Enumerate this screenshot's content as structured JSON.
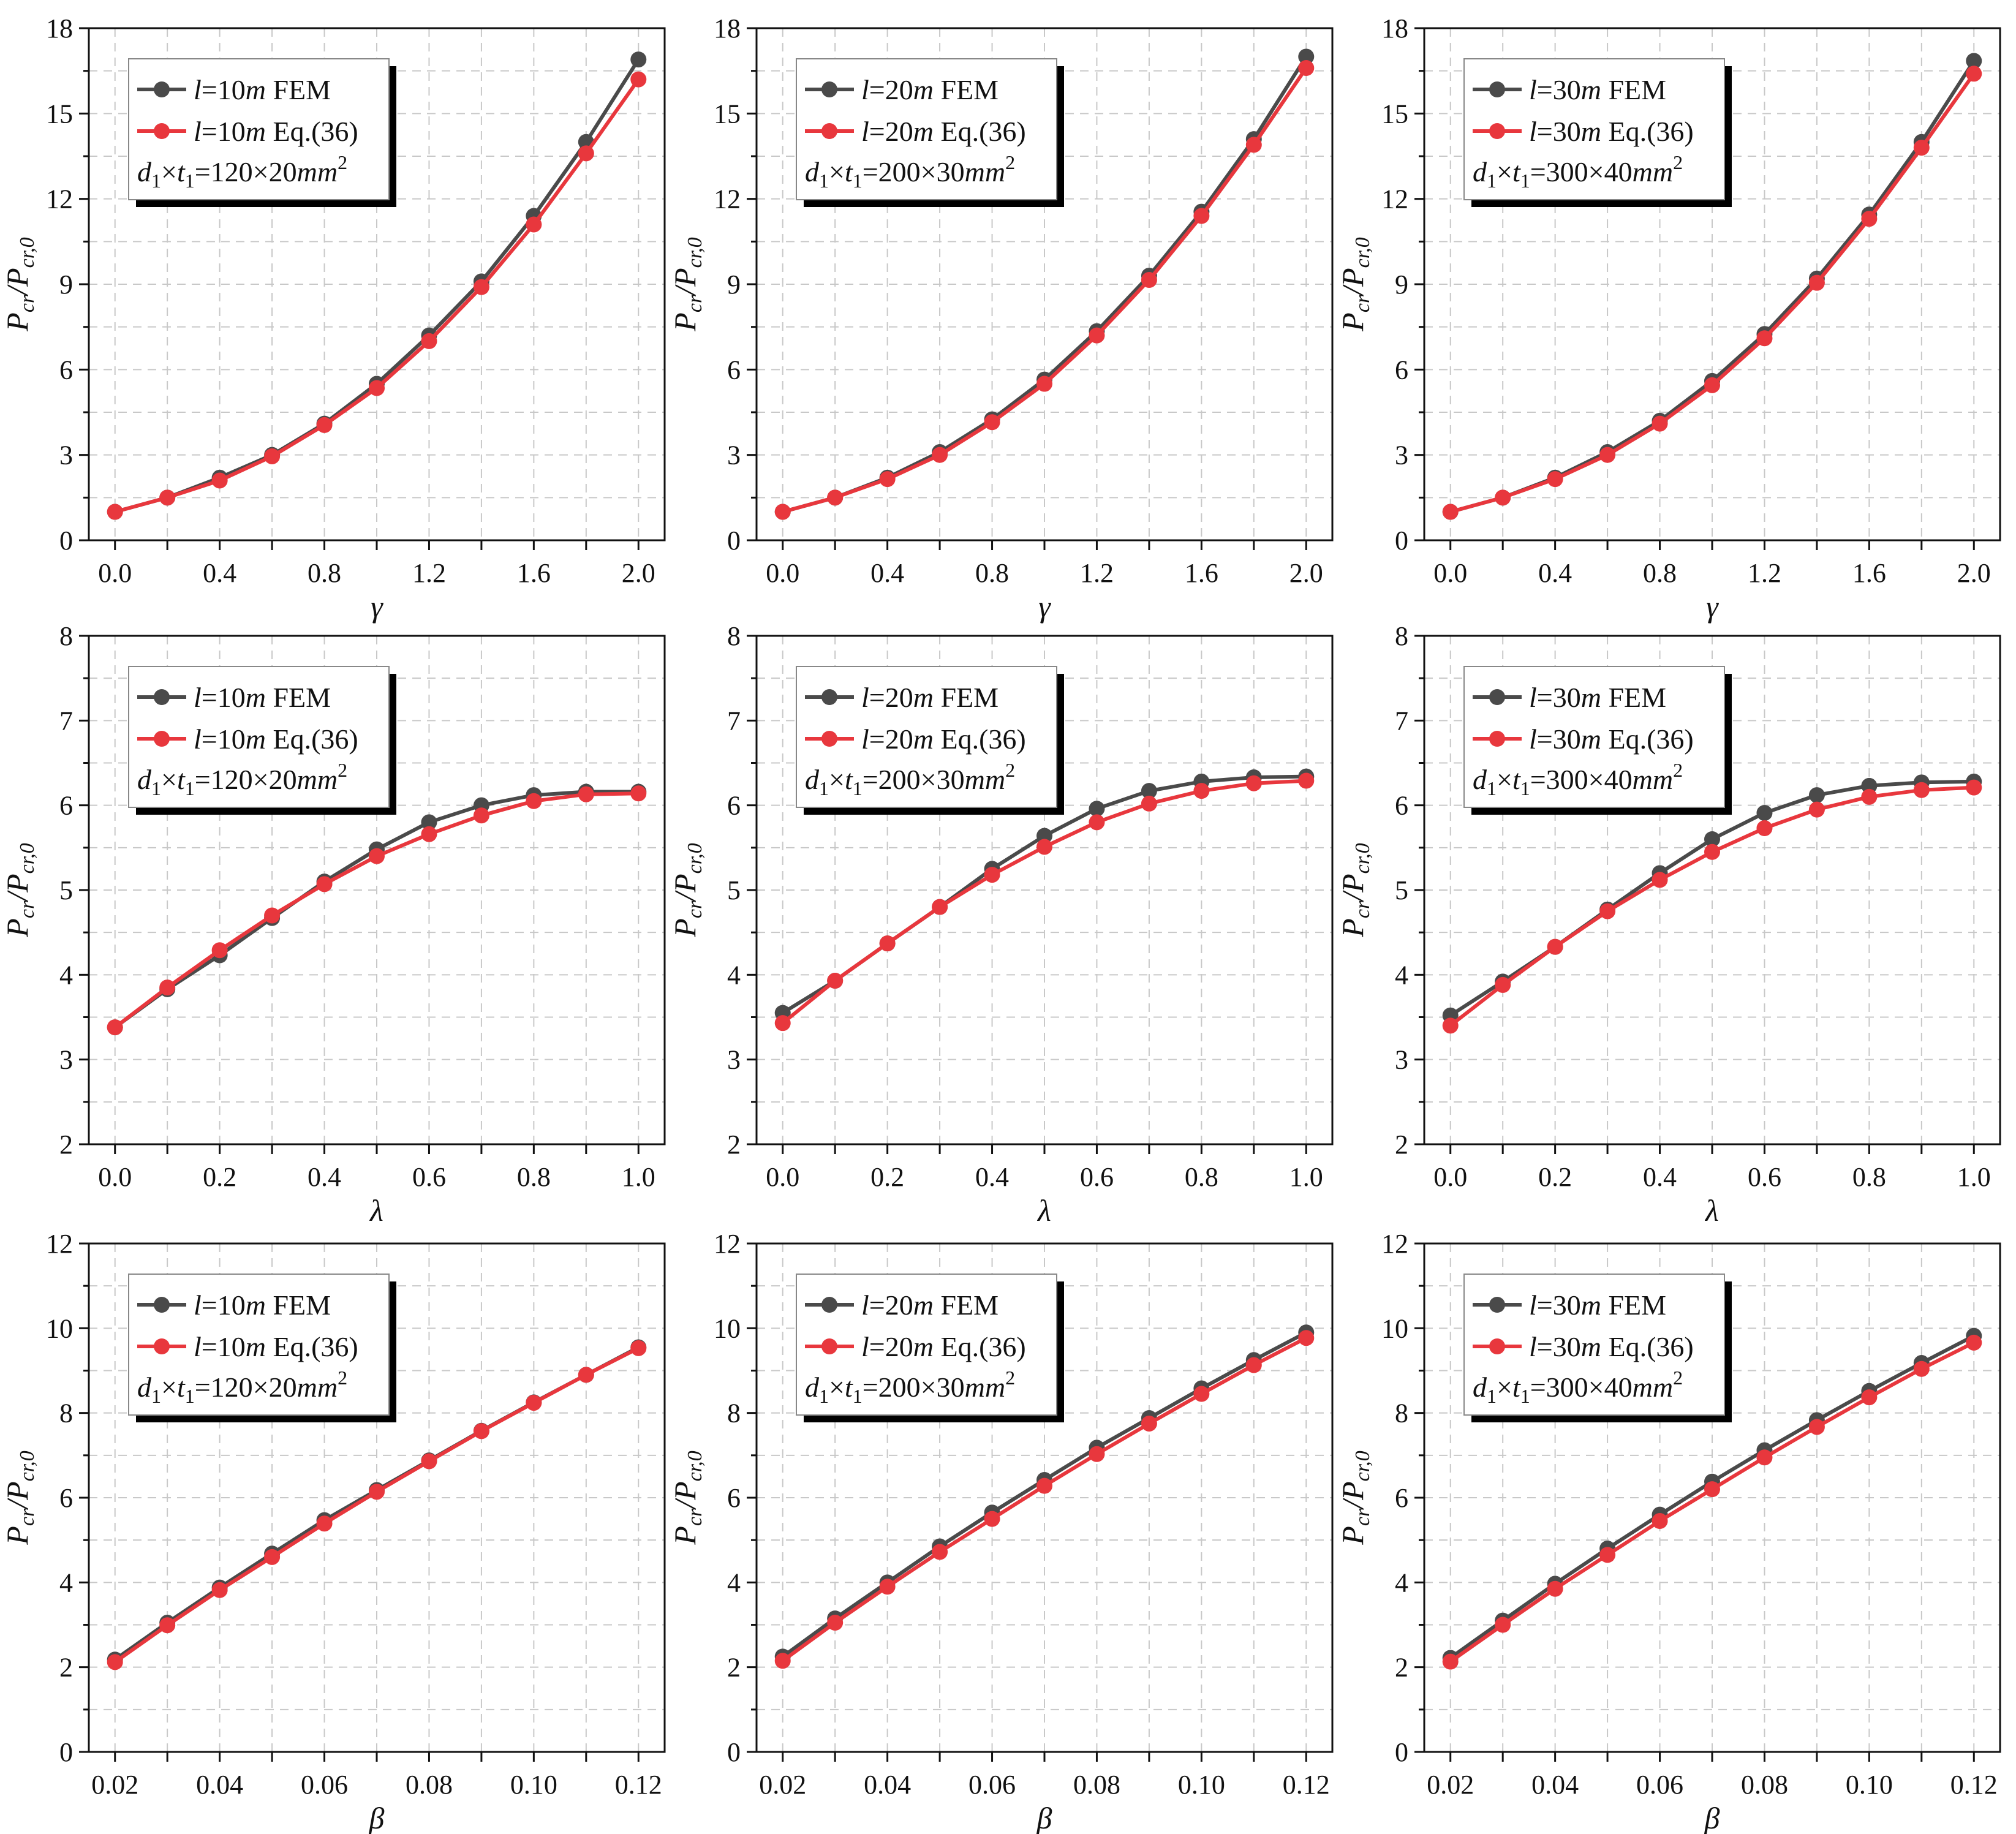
{
  "colors": {
    "fem": "#4a4a4a",
    "eq": "#e8373d",
    "grid": "#c8c8c8"
  },
  "chart_data": [
    {
      "type": "line",
      "row": 0,
      "col": 0,
      "xlabel": "γ",
      "ylabel": {
        "base": "P",
        "sub1": "cr",
        "sep": "/P",
        "sub2": "cr,0"
      },
      "xlim": [
        -0.1,
        2.1
      ],
      "ylim": [
        0,
        18
      ],
      "xticks": [
        0,
        0.2,
        0.4,
        0.6,
        0.8,
        1.0,
        1.2,
        1.4,
        1.6,
        1.8,
        2.0
      ],
      "xticklabels": [
        "0.0",
        "",
        "0.4",
        "",
        "0.8",
        "",
        "1.2",
        "",
        "1.6",
        "",
        "2.0"
      ],
      "yticks": [
        0,
        3,
        6,
        9,
        12,
        15,
        18
      ],
      "yticklabels": [
        "0",
        "3",
        "6",
        "9",
        "12",
        "15",
        "18"
      ],
      "x": [
        0,
        0.2,
        0.4,
        0.6,
        0.8,
        1.0,
        1.2,
        1.4,
        1.6,
        1.8,
        2.0
      ],
      "series": [
        {
          "name": "FEM",
          "values": [
            1.0,
            1.5,
            2.2,
            3.0,
            4.1,
            5.5,
            7.2,
            9.1,
            11.4,
            14.0,
            16.9
          ]
        },
        {
          "name": "Eq.(36)",
          "values": [
            1.0,
            1.5,
            2.1,
            2.95,
            4.05,
            5.35,
            7.0,
            8.9,
            11.1,
            13.6,
            16.2
          ]
        }
      ],
      "legend": {
        "l_sym": "l",
        "l_val": "=10",
        "l_unit": "m",
        "fem": "FEM",
        "eq": "Eq.(36)",
        "d": "d",
        "t": "t",
        "times": "×",
        "dims": "=120×20",
        "unit": "mm",
        "exp": "2",
        "sub": "1"
      }
    },
    {
      "type": "line",
      "row": 0,
      "col": 1,
      "xlabel": "γ",
      "ylabel": {
        "base": "P",
        "sub1": "cr",
        "sep": "/P",
        "sub2": "cr,0"
      },
      "xlim": [
        -0.1,
        2.1
      ],
      "ylim": [
        0,
        18
      ],
      "xticks": [
        0,
        0.2,
        0.4,
        0.6,
        0.8,
        1.0,
        1.2,
        1.4,
        1.6,
        1.8,
        2.0
      ],
      "xticklabels": [
        "0.0",
        "",
        "0.4",
        "",
        "0.8",
        "",
        "1.2",
        "",
        "1.6",
        "",
        "2.0"
      ],
      "yticks": [
        0,
        3,
        6,
        9,
        12,
        15,
        18
      ],
      "yticklabels": [
        "0",
        "3",
        "6",
        "9",
        "12",
        "15",
        "18"
      ],
      "x": [
        0,
        0.2,
        0.4,
        0.6,
        0.8,
        1.0,
        1.2,
        1.4,
        1.6,
        1.8,
        2.0
      ],
      "series": [
        {
          "name": "FEM",
          "values": [
            1.0,
            1.5,
            2.2,
            3.1,
            4.25,
            5.65,
            7.35,
            9.3,
            11.55,
            14.1,
            17.0
          ]
        },
        {
          "name": "Eq.(36)",
          "values": [
            1.0,
            1.5,
            2.15,
            3.0,
            4.15,
            5.5,
            7.2,
            9.15,
            11.4,
            13.9,
            16.6
          ]
        }
      ],
      "legend": {
        "l_sym": "l",
        "l_val": "=20",
        "l_unit": "m",
        "fem": "FEM",
        "eq": "Eq.(36)",
        "d": "d",
        "t": "t",
        "times": "×",
        "dims": "=200×30",
        "unit": "mm",
        "exp": "2",
        "sub": "1"
      }
    },
    {
      "type": "line",
      "row": 0,
      "col": 2,
      "xlabel": "γ",
      "ylabel": {
        "base": "P",
        "sub1": "cr",
        "sep": "/P",
        "sub2": "cr,0"
      },
      "xlim": [
        -0.1,
        2.1
      ],
      "ylim": [
        0,
        18
      ],
      "xticks": [
        0,
        0.2,
        0.4,
        0.6,
        0.8,
        1.0,
        1.2,
        1.4,
        1.6,
        1.8,
        2.0
      ],
      "xticklabels": [
        "0.0",
        "",
        "0.4",
        "",
        "0.8",
        "",
        "1.2",
        "",
        "1.6",
        "",
        "2.0"
      ],
      "yticks": [
        0,
        3,
        6,
        9,
        12,
        15,
        18
      ],
      "yticklabels": [
        "0",
        "3",
        "6",
        "9",
        "12",
        "15",
        "18"
      ],
      "x": [
        0,
        0.2,
        0.4,
        0.6,
        0.8,
        1.0,
        1.2,
        1.4,
        1.6,
        1.8,
        2.0
      ],
      "series": [
        {
          "name": "FEM",
          "values": [
            1.0,
            1.5,
            2.2,
            3.1,
            4.2,
            5.6,
            7.25,
            9.2,
            11.45,
            14.0,
            16.85
          ]
        },
        {
          "name": "Eq.(36)",
          "values": [
            1.0,
            1.5,
            2.15,
            3.0,
            4.1,
            5.45,
            7.1,
            9.05,
            11.3,
            13.8,
            16.4
          ]
        }
      ],
      "legend": {
        "l_sym": "l",
        "l_val": "=30",
        "l_unit": "m",
        "fem": "FEM",
        "eq": "Eq.(36)",
        "d": "d",
        "t": "t",
        "times": "×",
        "dims": "=300×40",
        "unit": "mm",
        "exp": "2",
        "sub": "1"
      }
    },
    {
      "type": "line",
      "row": 1,
      "col": 0,
      "xlabel": "λ",
      "ylabel": {
        "base": "P",
        "sub1": "cr",
        "sep": "/P",
        "sub2": "cr,0"
      },
      "xlim": [
        -0.05,
        1.05
      ],
      "ylim": [
        2,
        8
      ],
      "xticks": [
        0,
        0.1,
        0.2,
        0.3,
        0.4,
        0.5,
        0.6,
        0.7,
        0.8,
        0.9,
        1.0
      ],
      "xticklabels": [
        "0.0",
        "",
        "0.2",
        "",
        "0.4",
        "",
        "0.6",
        "",
        "0.8",
        "",
        "1.0"
      ],
      "yticks": [
        2,
        3,
        4,
        5,
        6,
        7,
        8
      ],
      "yticklabels": [
        "2",
        "3",
        "4",
        "5",
        "6",
        "7",
        "8"
      ],
      "x": [
        0,
        0.1,
        0.2,
        0.3,
        0.4,
        0.5,
        0.6,
        0.7,
        0.8,
        0.9,
        1.0
      ],
      "series": [
        {
          "name": "FEM",
          "values": [
            3.38,
            3.83,
            4.23,
            4.67,
            5.1,
            5.48,
            5.8,
            6.0,
            6.12,
            6.16,
            6.16
          ]
        },
        {
          "name": "Eq.(36)",
          "values": [
            3.38,
            3.85,
            4.29,
            4.7,
            5.07,
            5.4,
            5.66,
            5.88,
            6.05,
            6.13,
            6.14
          ]
        }
      ],
      "legend": {
        "l_sym": "l",
        "l_val": "=10",
        "l_unit": "m",
        "fem": "FEM",
        "eq": "Eq.(36)",
        "d": "d",
        "t": "t",
        "times": "×",
        "dims": "=120×20",
        "unit": "mm",
        "exp": "2",
        "sub": "1"
      }
    },
    {
      "type": "line",
      "row": 1,
      "col": 1,
      "xlabel": "λ",
      "ylabel": {
        "base": "P",
        "sub1": "cr",
        "sep": "/P",
        "sub2": "cr,0"
      },
      "xlim": [
        -0.05,
        1.05
      ],
      "ylim": [
        2,
        8
      ],
      "xticks": [
        0,
        0.1,
        0.2,
        0.3,
        0.4,
        0.5,
        0.6,
        0.7,
        0.8,
        0.9,
        1.0
      ],
      "xticklabels": [
        "0.0",
        "",
        "0.2",
        "",
        "0.4",
        "",
        "0.6",
        "",
        "0.8",
        "",
        "1.0"
      ],
      "yticks": [
        2,
        3,
        4,
        5,
        6,
        7,
        8
      ],
      "yticklabels": [
        "2",
        "3",
        "4",
        "5",
        "6",
        "7",
        "8"
      ],
      "x": [
        0,
        0.1,
        0.2,
        0.3,
        0.4,
        0.5,
        0.6,
        0.7,
        0.8,
        0.9,
        1.0
      ],
      "series": [
        {
          "name": "FEM",
          "values": [
            3.55,
            3.93,
            4.37,
            4.8,
            5.25,
            5.64,
            5.96,
            6.17,
            6.28,
            6.33,
            6.34
          ]
        },
        {
          "name": "Eq.(36)",
          "values": [
            3.43,
            3.93,
            4.37,
            4.8,
            5.18,
            5.51,
            5.8,
            6.02,
            6.17,
            6.26,
            6.29
          ]
        }
      ],
      "legend": {
        "l_sym": "l",
        "l_val": "=20",
        "l_unit": "m",
        "fem": "FEM",
        "eq": "Eq.(36)",
        "d": "d",
        "t": "t",
        "times": "×",
        "dims": "=200×30",
        "unit": "mm",
        "exp": "2",
        "sub": "1"
      }
    },
    {
      "type": "line",
      "row": 1,
      "col": 2,
      "xlabel": "λ",
      "ylabel": {
        "base": "P",
        "sub1": "cr",
        "sep": "/P",
        "sub2": "cr,0"
      },
      "xlim": [
        -0.05,
        1.05
      ],
      "ylim": [
        2,
        8
      ],
      "xticks": [
        0,
        0.1,
        0.2,
        0.3,
        0.4,
        0.5,
        0.6,
        0.7,
        0.8,
        0.9,
        1.0
      ],
      "xticklabels": [
        "0.0",
        "",
        "0.2",
        "",
        "0.4",
        "",
        "0.6",
        "",
        "0.8",
        "",
        "1.0"
      ],
      "yticks": [
        2,
        3,
        4,
        5,
        6,
        7,
        8
      ],
      "yticklabels": [
        "2",
        "3",
        "4",
        "5",
        "6",
        "7",
        "8"
      ],
      "x": [
        0,
        0.1,
        0.2,
        0.3,
        0.4,
        0.5,
        0.6,
        0.7,
        0.8,
        0.9,
        1.0
      ],
      "series": [
        {
          "name": "FEM",
          "values": [
            3.52,
            3.92,
            4.33,
            4.77,
            5.2,
            5.6,
            5.91,
            6.12,
            6.23,
            6.27,
            6.28
          ]
        },
        {
          "name": "Eq.(36)",
          "values": [
            3.4,
            3.88,
            4.33,
            4.75,
            5.12,
            5.45,
            5.73,
            5.95,
            6.1,
            6.18,
            6.21
          ]
        }
      ],
      "legend": {
        "l_sym": "l",
        "l_val": "=30",
        "l_unit": "m",
        "fem": "FEM",
        "eq": "Eq.(36)",
        "d": "d",
        "t": "t",
        "times": "×",
        "dims": "=300×40",
        "unit": "mm",
        "exp": "2",
        "sub": "1"
      }
    },
    {
      "type": "line",
      "row": 2,
      "col": 0,
      "xlabel": "β",
      "ylabel": {
        "base": "P",
        "sub1": "cr",
        "sep": "/P",
        "sub2": "cr,0"
      },
      "xlim": [
        0.015,
        0.125
      ],
      "ylim": [
        0,
        12
      ],
      "xticks": [
        0.02,
        0.03,
        0.04,
        0.05,
        0.06,
        0.07,
        0.08,
        0.09,
        0.1,
        0.11,
        0.12
      ],
      "xticklabels": [
        "0.02",
        "",
        "0.04",
        "",
        "0.06",
        "",
        "0.08",
        "",
        "0.10",
        "",
        "0.12"
      ],
      "yticks": [
        0,
        2,
        4,
        6,
        8,
        10,
        12
      ],
      "yticklabels": [
        "0",
        "2",
        "4",
        "6",
        "8",
        "10",
        "12"
      ],
      "x": [
        0.02,
        0.03,
        0.04,
        0.05,
        0.06,
        0.07,
        0.08,
        0.09,
        0.1,
        0.11,
        0.12
      ],
      "series": [
        {
          "name": "FEM",
          "values": [
            2.18,
            3.05,
            3.88,
            4.68,
            5.47,
            6.18,
            6.88,
            7.58,
            8.25,
            8.9,
            9.55
          ]
        },
        {
          "name": "Eq.(36)",
          "values": [
            2.12,
            2.99,
            3.82,
            4.6,
            5.39,
            6.14,
            6.86,
            7.57,
            8.24,
            8.9,
            9.53
          ]
        }
      ],
      "legend": {
        "l_sym": "l",
        "l_val": "=10",
        "l_unit": "m",
        "fem": "FEM",
        "eq": "Eq.(36)",
        "d": "d",
        "t": "t",
        "times": "×",
        "dims": "=120×20",
        "unit": "mm",
        "exp": "2",
        "sub": "1"
      }
    },
    {
      "type": "line",
      "row": 2,
      "col": 1,
      "xlabel": "β",
      "ylabel": {
        "base": "P",
        "sub1": "cr",
        "sep": "/P",
        "sub2": "cr,0"
      },
      "xlim": [
        0.015,
        0.125
      ],
      "ylim": [
        0,
        12
      ],
      "xticks": [
        0.02,
        0.03,
        0.04,
        0.05,
        0.06,
        0.07,
        0.08,
        0.09,
        0.1,
        0.11,
        0.12
      ],
      "xticklabels": [
        "0.02",
        "",
        "0.04",
        "",
        "0.06",
        "",
        "0.08",
        "",
        "0.10",
        "",
        "0.12"
      ],
      "yticks": [
        0,
        2,
        4,
        6,
        8,
        10,
        12
      ],
      "yticklabels": [
        "0",
        "2",
        "4",
        "6",
        "8",
        "10",
        "12"
      ],
      "x": [
        0.02,
        0.03,
        0.04,
        0.05,
        0.06,
        0.07,
        0.08,
        0.09,
        0.1,
        0.11,
        0.12
      ],
      "series": [
        {
          "name": "FEM",
          "values": [
            2.25,
            3.15,
            4.0,
            4.85,
            5.65,
            6.42,
            7.18,
            7.88,
            8.58,
            9.25,
            9.9
          ]
        },
        {
          "name": "Eq.(36)",
          "values": [
            2.15,
            3.05,
            3.9,
            4.72,
            5.5,
            6.28,
            7.03,
            7.75,
            8.45,
            9.13,
            9.77
          ]
        }
      ],
      "legend": {
        "l_sym": "l",
        "l_val": "=20",
        "l_unit": "m",
        "fem": "FEM",
        "eq": "Eq.(36)",
        "d": "d",
        "t": "t",
        "times": "×",
        "dims": "=200×30",
        "unit": "mm",
        "exp": "2",
        "sub": "1"
      }
    },
    {
      "type": "line",
      "row": 2,
      "col": 2,
      "xlabel": "β",
      "ylabel": {
        "base": "P",
        "sub1": "cr",
        "sep": "/P",
        "sub2": "cr,0"
      },
      "xlim": [
        0.015,
        0.125
      ],
      "ylim": [
        0,
        12
      ],
      "xticks": [
        0.02,
        0.03,
        0.04,
        0.05,
        0.06,
        0.07,
        0.08,
        0.09,
        0.1,
        0.11,
        0.12
      ],
      "xticklabels": [
        "0.02",
        "",
        "0.04",
        "",
        "0.06",
        "",
        "0.08",
        "",
        "0.10",
        "",
        "0.12"
      ],
      "yticks": [
        0,
        2,
        4,
        6,
        8,
        10,
        12
      ],
      "yticklabels": [
        "0",
        "2",
        "4",
        "6",
        "8",
        "10",
        "12"
      ],
      "x": [
        0.02,
        0.03,
        0.04,
        0.05,
        0.06,
        0.07,
        0.08,
        0.09,
        0.1,
        0.11,
        0.12
      ],
      "series": [
        {
          "name": "FEM",
          "values": [
            2.22,
            3.1,
            3.97,
            4.8,
            5.6,
            6.38,
            7.12,
            7.83,
            8.52,
            9.18,
            9.82
          ]
        },
        {
          "name": "Eq.(36)",
          "values": [
            2.13,
            3.0,
            3.85,
            4.65,
            5.45,
            6.2,
            6.95,
            7.67,
            8.37,
            9.04,
            9.66
          ]
        }
      ],
      "legend": {
        "l_sym": "l",
        "l_val": "=30",
        "l_unit": "m",
        "fem": "FEM",
        "eq": "Eq.(36)",
        "d": "d",
        "t": "t",
        "times": "×",
        "dims": "=300×40",
        "unit": "mm",
        "exp": "2",
        "sub": "1"
      }
    }
  ]
}
